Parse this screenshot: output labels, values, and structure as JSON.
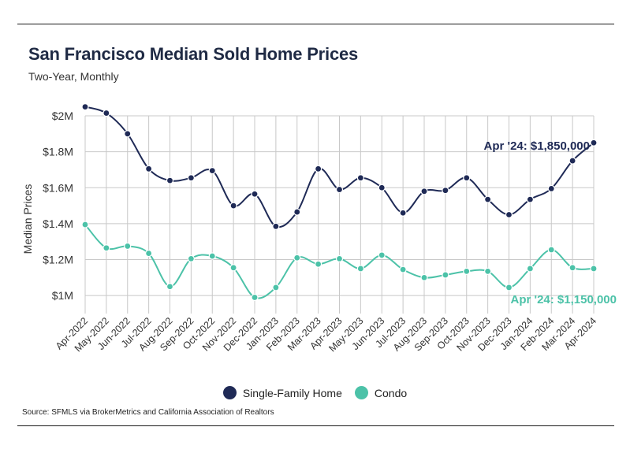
{
  "header": {
    "title": "San Francisco Median Sold Home Prices",
    "subtitle": "Two-Year, Monthly"
  },
  "source": "Source:  SFMLS via BrokerMetrics and California Association of Realtors",
  "colors": {
    "single_family": "#1f2a56",
    "condo": "#4cc2a8",
    "grid": "#c8c8c8"
  },
  "chart_data": {
    "type": "line",
    "title": "San Francisco Median Sold Home Prices",
    "subtitle": "Two-Year, Monthly",
    "xlabel": "",
    "ylabel": "Median Prices",
    "ylim": [
      900000,
      2000000
    ],
    "y_ticks": [
      1000000,
      1200000,
      1400000,
      1600000,
      1800000,
      2000000
    ],
    "y_tick_labels": [
      "$1M",
      "$1.2M",
      "$1.4M",
      "$1.6M",
      "$1.8M",
      "$2M"
    ],
    "grid": true,
    "legend_position": "bottom",
    "categories": [
      "Apr-2022",
      "May-2022",
      "Jun-2022",
      "Jul-2022",
      "Aug-2022",
      "Sep-2022",
      "Oct-2022",
      "Nov-2022",
      "Dec-2022",
      "Jan-2023",
      "Feb-2023",
      "Mar-2023",
      "Apr-2023",
      "May-2023",
      "Jun-2023",
      "Jul-2023",
      "Aug-2023",
      "Sep-2023",
      "Oct-2023",
      "Nov-2023",
      "Dec-2023",
      "Jan-2024",
      "Feb-2024",
      "Mar-2024",
      "Apr-2024"
    ],
    "series": [
      {
        "name": "Single-Family Home",
        "color": "#1f2a56",
        "values": [
          2050000,
          2015000,
          1900000,
          1705000,
          1640000,
          1655000,
          1695000,
          1500000,
          1565000,
          1385000,
          1465000,
          1705000,
          1590000,
          1655000,
          1600000,
          1460000,
          1580000,
          1585000,
          1655000,
          1535000,
          1450000,
          1535000,
          1595000,
          1750000,
          1850000
        ],
        "annotation": "Apr '24: $1,850,000"
      },
      {
        "name": "Condo",
        "color": "#4cc2a8",
        "values": [
          1395000,
          1265000,
          1275000,
          1235000,
          1050000,
          1205000,
          1220000,
          1155000,
          990000,
          1045000,
          1210000,
          1175000,
          1205000,
          1150000,
          1225000,
          1145000,
          1100000,
          1115000,
          1135000,
          1135000,
          1045000,
          1150000,
          1255000,
          1155000,
          1150000
        ],
        "annotation": "Apr '24: $1,150,000"
      }
    ]
  }
}
